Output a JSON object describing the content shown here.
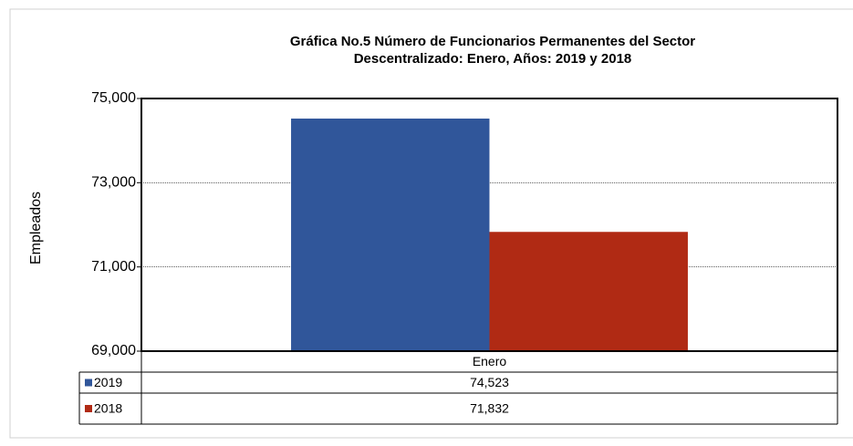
{
  "chart_data": {
    "type": "bar",
    "title": "Gráfica No.5 Número de Funcionarios Permanentes del Sector Descentralizado: Enero, Años: 2019 y 2018",
    "y_label": "Empleados",
    "categories": [
      "Enero"
    ],
    "series": [
      {
        "name": "2019",
        "color": "#30569a",
        "values": [
          74523
        ],
        "value_labels": [
          "74,523"
        ]
      },
      {
        "name": "2018",
        "color": "#b02a14",
        "values": [
          71832
        ],
        "value_labels": [
          "71,832"
        ]
      }
    ],
    "ylim": [
      69000,
      75000
    ],
    "yticks": [
      {
        "value": 69000,
        "label": "69,000"
      },
      {
        "value": 71000,
        "label": "71,000"
      },
      {
        "value": 73000,
        "label": "73,000"
      },
      {
        "value": 75000,
        "label": "75,000"
      }
    ],
    "grid": true
  }
}
